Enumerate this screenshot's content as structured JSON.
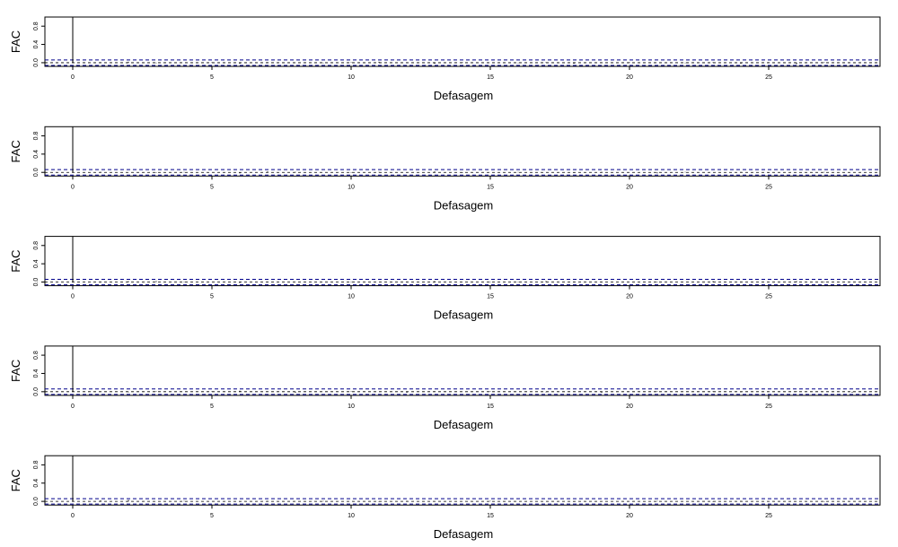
{
  "chart_data": [
    {
      "type": "bar",
      "xlabel": "Defasagem",
      "ylabel": "FAC",
      "xlim": [
        -1,
        29
      ],
      "ylim": [
        -0.08,
        1.0
      ],
      "xticks": [
        0,
        5,
        10,
        15,
        20,
        25
      ],
      "xtick_labels": [
        "0",
        "5",
        "10",
        "15",
        "20",
        "25"
      ],
      "yticks": [
        0.0,
        0.4,
        0.8
      ],
      "ytick_labels": [
        "0.0",
        "0.4",
        "0.8"
      ],
      "confidence_band": [
        -0.06,
        0.06
      ],
      "band_color": "#00008B",
      "x": [
        0,
        1,
        2,
        3,
        4,
        5,
        6,
        7,
        8,
        9,
        10,
        11,
        12,
        13,
        14,
        15,
        16,
        17,
        18,
        19,
        20,
        21,
        22,
        23,
        24,
        25,
        26,
        27,
        28
      ],
      "values": [
        1.0,
        0.01,
        0.02,
        -0.01,
        0.0,
        0.01,
        -0.02,
        0.01,
        0.0,
        -0.01,
        0.01,
        0.02,
        0.0,
        -0.02,
        0.01,
        0.0,
        -0.01,
        0.01,
        -0.02,
        0.0,
        0.01,
        0.0,
        -0.01,
        0.01,
        -0.02,
        0.01,
        -0.03,
        0.01,
        0.0
      ]
    },
    {
      "type": "bar",
      "xlabel": "Defasagem",
      "ylabel": "FAC",
      "xlim": [
        -1,
        29
      ],
      "ylim": [
        -0.08,
        1.0
      ],
      "xticks": [
        0,
        5,
        10,
        15,
        20,
        25
      ],
      "xtick_labels": [
        "0",
        "5",
        "10",
        "15",
        "20",
        "25"
      ],
      "yticks": [
        0.0,
        0.4,
        0.8
      ],
      "ytick_labels": [
        "0.0",
        "0.4",
        "0.8"
      ],
      "confidence_band": [
        -0.06,
        0.06
      ],
      "band_color": "#00008B",
      "x": [
        0,
        1,
        2,
        3,
        4,
        5,
        6,
        7,
        8,
        9,
        10,
        11,
        12,
        13,
        14,
        15,
        16,
        17,
        18,
        19,
        20,
        21,
        22,
        23,
        24,
        25,
        26,
        27,
        28
      ],
      "values": [
        1.0,
        0.01,
        0.0,
        -0.01,
        0.01,
        0.0,
        -0.02,
        0.02,
        0.01,
        0.0,
        -0.01,
        0.01,
        0.0,
        0.02,
        -0.01,
        0.0,
        0.01,
        0.0,
        -0.01,
        0.01,
        0.0,
        -0.02,
        0.01,
        0.0,
        0.01,
        -0.01,
        0.0,
        0.01,
        0.0
      ]
    },
    {
      "type": "bar",
      "xlabel": "Defasagem",
      "ylabel": "FAC",
      "xlim": [
        -1,
        29
      ],
      "ylim": [
        -0.08,
        1.0
      ],
      "xticks": [
        0,
        5,
        10,
        15,
        20,
        25
      ],
      "xtick_labels": [
        "0",
        "5",
        "10",
        "15",
        "20",
        "25"
      ],
      "yticks": [
        0.0,
        0.4,
        0.8
      ],
      "ytick_labels": [
        "0.0",
        "0.4",
        "0.8"
      ],
      "confidence_band": [
        -0.06,
        0.06
      ],
      "band_color": "#00008B",
      "x": [
        0,
        1,
        2,
        3,
        4,
        5,
        6,
        7,
        8,
        9,
        10,
        11,
        12,
        13,
        14,
        15,
        16,
        17,
        18,
        19,
        20,
        21,
        22,
        23,
        24,
        25,
        26,
        27,
        28
      ],
      "values": [
        1.0,
        0.01,
        0.02,
        0.02,
        0.01,
        0.0,
        -0.02,
        0.01,
        0.0,
        0.0,
        -0.01,
        0.0,
        -0.01,
        0.02,
        0.0,
        0.01,
        -0.01,
        0.02,
        -0.01,
        0.01,
        0.0,
        0.01,
        0.0,
        0.02,
        -0.01,
        0.0,
        0.02,
        -0.01,
        0.0
      ]
    },
    {
      "type": "bar",
      "xlabel": "Defasagem",
      "ylabel": "FAC",
      "xlim": [
        -1,
        29
      ],
      "ylim": [
        -0.08,
        1.0
      ],
      "xticks": [
        0,
        5,
        10,
        15,
        20,
        25
      ],
      "xtick_labels": [
        "0",
        "5",
        "10",
        "15",
        "20",
        "25"
      ],
      "yticks": [
        0.0,
        0.4,
        0.8
      ],
      "ytick_labels": [
        "0.0",
        "0.4",
        "0.8"
      ],
      "confidence_band": [
        -0.06,
        0.06
      ],
      "band_color": "#00008B",
      "x": [
        0,
        1,
        2,
        3,
        4,
        5,
        6,
        7,
        8,
        9,
        10,
        11,
        12,
        13,
        14,
        15,
        16,
        17,
        18,
        19,
        20,
        21,
        22,
        23,
        24,
        25,
        26,
        27,
        28
      ],
      "values": [
        1.0,
        0.0,
        -0.01,
        0.01,
        0.0,
        0.01,
        0.02,
        0.0,
        -0.02,
        0.0,
        0.01,
        0.0,
        -0.02,
        0.01,
        0.0,
        0.01,
        0.0,
        -0.01,
        0.0,
        -0.02,
        0.0,
        0.01,
        0.0,
        0.01,
        -0.01,
        0.0,
        0.01,
        0.0,
        -0.02
      ]
    },
    {
      "type": "bar",
      "xlabel": "Defasagem",
      "ylabel": "FAC",
      "xlim": [
        -1,
        29
      ],
      "ylim": [
        -0.08,
        1.0
      ],
      "xticks": [
        0,
        5,
        10,
        15,
        20,
        25
      ],
      "xtick_labels": [
        "0",
        "5",
        "10",
        "15",
        "20",
        "25"
      ],
      "yticks": [
        0.0,
        0.4,
        0.8
      ],
      "ytick_labels": [
        "0.0",
        "0.4",
        "0.8"
      ],
      "confidence_band": [
        -0.06,
        0.06
      ],
      "band_color": "#00008B",
      "x": [
        0,
        1,
        2,
        3,
        4,
        5,
        6,
        7,
        8,
        9,
        10,
        11,
        12,
        13,
        14,
        15,
        16,
        17,
        18,
        19,
        20,
        21,
        22,
        23,
        24,
        25,
        26,
        27,
        28
      ],
      "values": [
        1.0,
        0.02,
        0.03,
        0.0,
        0.01,
        0.0,
        -0.01,
        0.01,
        0.0,
        0.01,
        0.0,
        -0.01,
        0.01,
        0.0,
        0.0,
        0.01,
        0.0,
        0.0,
        -0.01,
        0.0,
        0.0,
        0.01,
        0.0,
        -0.01,
        0.01,
        0.0,
        0.0,
        -0.01,
        0.0
      ]
    }
  ]
}
